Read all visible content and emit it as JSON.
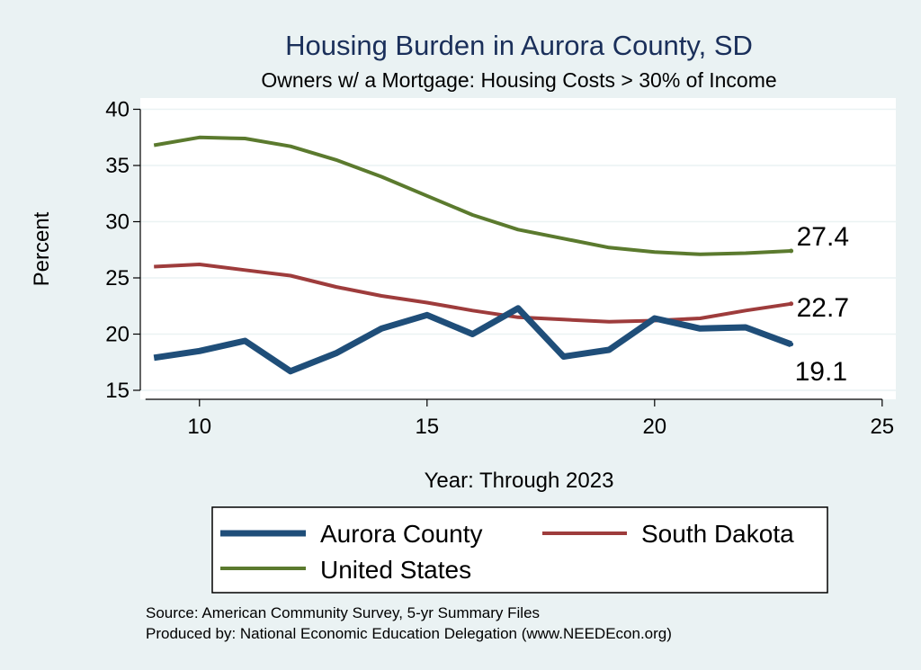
{
  "chart_data": {
    "type": "line",
    "title": "Housing Burden in Aurora County, SD",
    "subtitle": "Owners w/ a Mortgage: Housing Costs > 30% of Income",
    "xlabel": "Year: Through 2023",
    "ylabel": "Percent",
    "xlim": [
      8.7,
      25.3
    ],
    "ylim": [
      14.2,
      41
    ],
    "xticks": [
      10,
      15,
      20,
      25
    ],
    "yticks": [
      15,
      20,
      25,
      30,
      35,
      40
    ],
    "grid": true,
    "legend_position": "bottom",
    "series": [
      {
        "name": "Aurora County",
        "color": "#1f4e79",
        "x": [
          9,
          10,
          11,
          12,
          13,
          14,
          15,
          16,
          17,
          18,
          19,
          20,
          21,
          22,
          23
        ],
        "y": [
          17.9,
          18.5,
          19.4,
          16.7,
          18.3,
          20.5,
          21.7,
          20.0,
          22.3,
          18.0,
          18.6,
          21.4,
          20.5,
          20.6,
          19.1
        ],
        "end_label": "19.1"
      },
      {
        "name": "South Dakota",
        "color": "#9e3c3c",
        "x": [
          9,
          10,
          11,
          12,
          13,
          14,
          15,
          16,
          17,
          18,
          19,
          20,
          21,
          22,
          23
        ],
        "y": [
          26.0,
          26.2,
          25.7,
          25.2,
          24.2,
          23.4,
          22.8,
          22.1,
          21.5,
          21.3,
          21.1,
          21.2,
          21.4,
          22.1,
          22.7
        ],
        "end_label": "22.7"
      },
      {
        "name": "United States",
        "color": "#5b7a2e",
        "x": [
          9,
          10,
          11,
          12,
          13,
          14,
          15,
          16,
          17,
          18,
          19,
          20,
          21,
          22,
          23
        ],
        "y": [
          36.8,
          37.5,
          37.4,
          36.7,
          35.5,
          34.0,
          32.3,
          30.6,
          29.3,
          28.5,
          27.7,
          27.3,
          27.1,
          27.2,
          27.4
        ],
        "end_label": "27.4"
      }
    ]
  },
  "source_lines": [
    "Source: American Community Survey, 5-yr Summary Files",
    "Produced by: National Economic Education Delegation (www.NEEDEcon.org)"
  ]
}
